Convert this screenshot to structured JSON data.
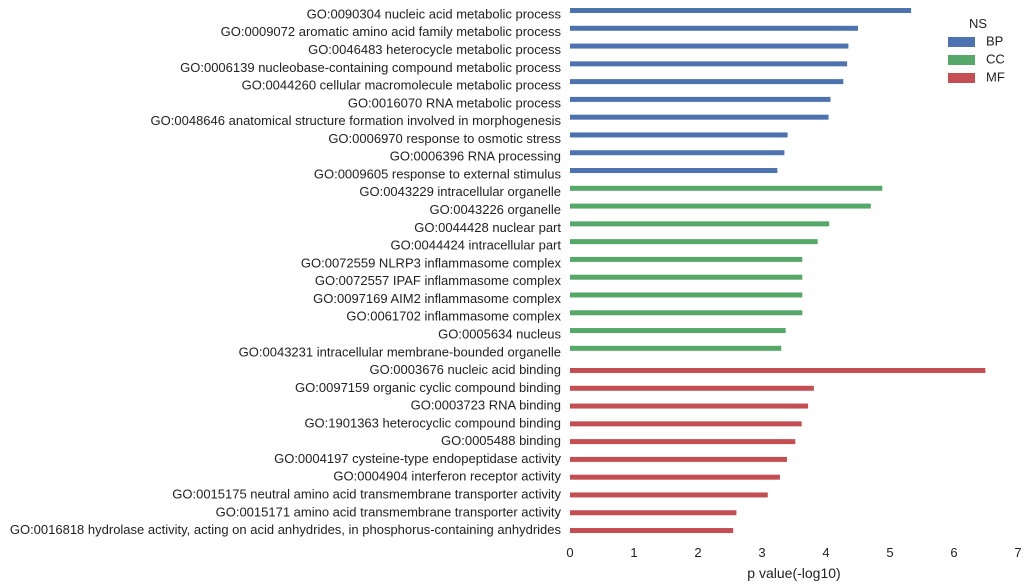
{
  "chart_data": {
    "type": "bar",
    "orientation": "horizontal",
    "xlabel": "p value(-log10)",
    "xlim": [
      0,
      7
    ],
    "xticks": [
      0,
      1,
      2,
      3,
      4,
      5,
      6,
      7
    ],
    "grid": false,
    "legend": {
      "title": "NS",
      "position": "top-right"
    },
    "series": [
      {
        "name": "BP",
        "color": "#4c72b0"
      },
      {
        "name": "CC",
        "color": "#55a868"
      },
      {
        "name": "MF",
        "color": "#c44e52"
      }
    ],
    "bars": [
      {
        "label": "GO:0090304 nucleic acid metabolic process",
        "ns": "BP",
        "value": 5.33
      },
      {
        "label": "GO:0009072 aromatic amino acid family metabolic process",
        "ns": "BP",
        "value": 4.5
      },
      {
        "label": "GO:0046483 heterocycle metabolic process",
        "ns": "BP",
        "value": 4.35
      },
      {
        "label": "GO:0006139 nucleobase-containing compound metabolic process",
        "ns": "BP",
        "value": 4.33
      },
      {
        "label": "GO:0044260 cellular macromolecule metabolic process",
        "ns": "BP",
        "value": 4.27
      },
      {
        "label": "GO:0016070 RNA metabolic process",
        "ns": "BP",
        "value": 4.07
      },
      {
        "label": "GO:0048646 anatomical structure formation involved in morphogenesis",
        "ns": "BP",
        "value": 4.04
      },
      {
        "label": "GO:0006970 response to osmotic stress",
        "ns": "BP",
        "value": 3.4
      },
      {
        "label": "GO:0006396 RNA processing",
        "ns": "BP",
        "value": 3.35
      },
      {
        "label": "GO:0009605 response to external stimulus",
        "ns": "BP",
        "value": 3.24
      },
      {
        "label": "GO:0043229 intracellular organelle",
        "ns": "CC",
        "value": 4.88
      },
      {
        "label": "GO:0043226 organelle",
        "ns": "CC",
        "value": 4.7
      },
      {
        "label": "GO:0044428 nuclear part",
        "ns": "CC",
        "value": 4.05
      },
      {
        "label": "GO:0044424 intracellular part",
        "ns": "CC",
        "value": 3.87
      },
      {
        "label": "GO:0072559 NLRP3 inflammasome complex",
        "ns": "CC",
        "value": 3.63
      },
      {
        "label": "GO:0072557 IPAF inflammasome complex",
        "ns": "CC",
        "value": 3.63
      },
      {
        "label": "GO:0097169 AIM2 inflammasome complex",
        "ns": "CC",
        "value": 3.63
      },
      {
        "label": "GO:0061702 inflammasome complex",
        "ns": "CC",
        "value": 3.63
      },
      {
        "label": "GO:0005634 nucleus",
        "ns": "CC",
        "value": 3.37
      },
      {
        "label": "GO:0043231 intracellular membrane-bounded organelle",
        "ns": "CC",
        "value": 3.3
      },
      {
        "label": "GO:0003676 nucleic acid binding",
        "ns": "MF",
        "value": 6.49
      },
      {
        "label": "GO:0097159 organic cyclic compound binding",
        "ns": "MF",
        "value": 3.81
      },
      {
        "label": "GO:0003723 RNA binding",
        "ns": "MF",
        "value": 3.72
      },
      {
        "label": "GO:1901363 heterocyclic compound binding",
        "ns": "MF",
        "value": 3.62
      },
      {
        "label": "GO:0005488 binding",
        "ns": "MF",
        "value": 3.52
      },
      {
        "label": "GO:0004197 cysteine-type endopeptidase activity",
        "ns": "MF",
        "value": 3.39
      },
      {
        "label": "GO:0004904 interferon receptor activity",
        "ns": "MF",
        "value": 3.28
      },
      {
        "label": "GO:0015175 neutral amino acid transmembrane transporter activity",
        "ns": "MF",
        "value": 3.09
      },
      {
        "label": "GO:0015171 amino acid transmembrane transporter activity",
        "ns": "MF",
        "value": 2.6
      },
      {
        "label": "GO:0016818 hydrolase activity, acting on acid anhydrides, in phosphorus-containing anhydrides",
        "ns": "MF",
        "value": 2.55
      }
    ]
  }
}
